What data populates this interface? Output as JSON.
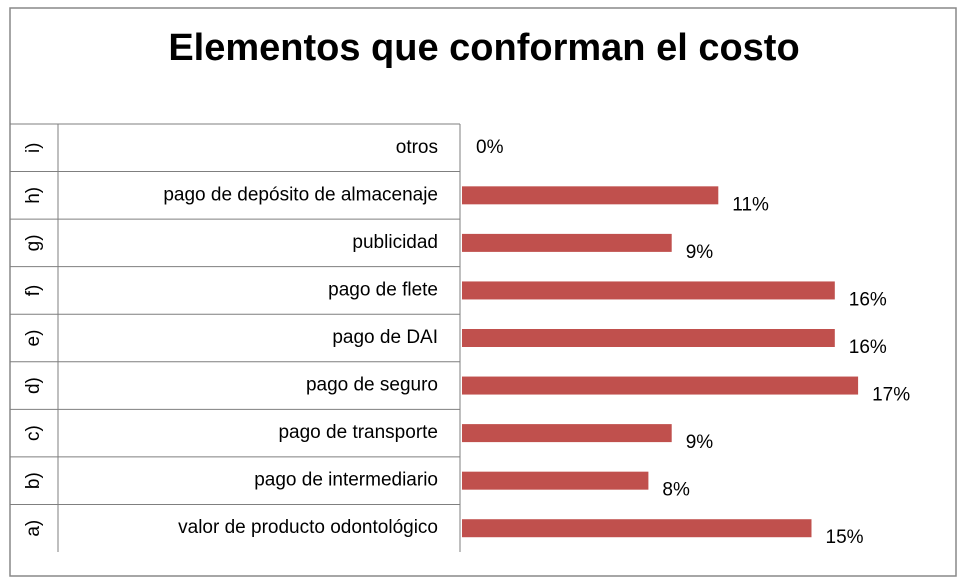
{
  "chart_data": {
    "type": "bar",
    "orientation": "horizontal",
    "title": "Elementos que conforman el costo",
    "groups": [
      "a)",
      "b)",
      "c)",
      "d)",
      "e)",
      "f)",
      "g)",
      "h)",
      "i)"
    ],
    "categories": [
      "valor de producto odontológico",
      "pago de intermediario",
      "pago de transporte",
      "pago de seguro",
      "pago de DAI",
      "pago de flete",
      "publicidad",
      "pago de depósito de almacenaje",
      "otros"
    ],
    "values": [
      15,
      8,
      9,
      17,
      16,
      16,
      9,
      11,
      0
    ],
    "value_labels": [
      "15%",
      "8%",
      "9%",
      "17%",
      "16%",
      "16%",
      "9%",
      "11%",
      "0%"
    ],
    "color": "#c0504d",
    "xlim": [
      0,
      20
    ]
  }
}
